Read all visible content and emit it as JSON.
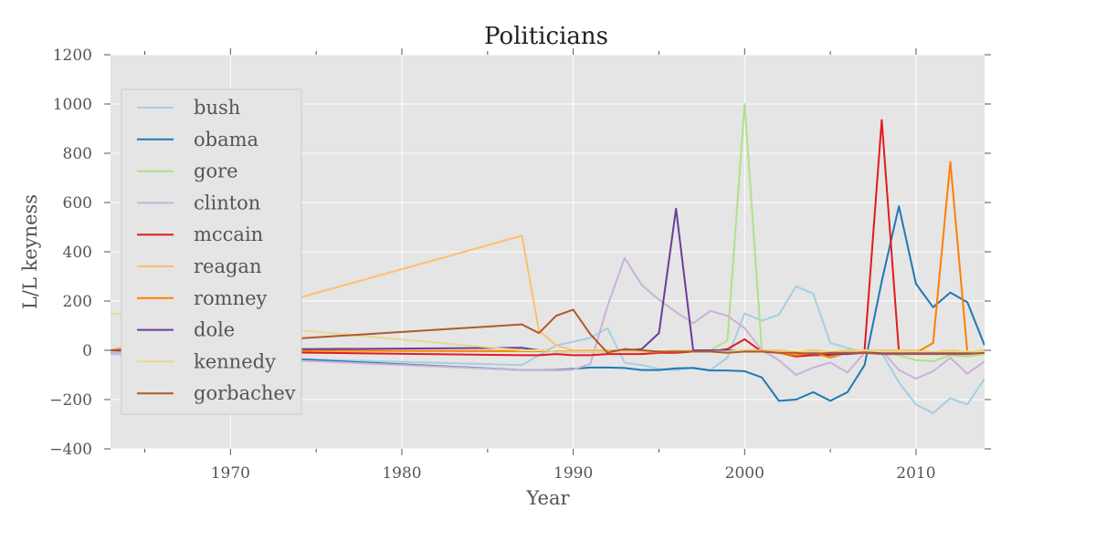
{
  "chart_data": {
    "type": "line",
    "title": "Politicians",
    "xlabel": "Year",
    "ylabel": "L/L keyness",
    "xlim": [
      1963,
      2014
    ],
    "ylim": [
      -400,
      1200
    ],
    "xticks": [
      1970,
      1980,
      1990,
      2000,
      2010
    ],
    "yticks": [
      -400,
      -200,
      0,
      200,
      400,
      600,
      800,
      1000,
      1200
    ],
    "ytick_labels": [
      "−400",
      "−200",
      "0",
      "200",
      "400",
      "600",
      "800",
      "1000",
      "1200"
    ],
    "grid": true,
    "legend_position": "upper-left",
    "series": [
      {
        "name": "bush",
        "color": "#a6cee3",
        "x": [
          1963,
          1987,
          1988,
          1989,
          1990,
          1991,
          1992,
          1993,
          1994,
          1995,
          1996,
          1997,
          1998,
          1999,
          2000,
          2001,
          2002,
          2003,
          2004,
          2005,
          2006,
          2007,
          2008,
          2009,
          2010,
          2011,
          2012,
          2013,
          2014
        ],
        "y": [
          -15,
          -60,
          -20,
          20,
          35,
          50,
          90,
          -50,
          -60,
          -75,
          -80,
          -70,
          -80,
          -30,
          150,
          120,
          145,
          260,
          230,
          30,
          10,
          -10,
          -10,
          -130,
          -220,
          -255,
          -195,
          -220,
          -115
        ]
      },
      {
        "name": "obama",
        "color": "#1f78b4",
        "x": [
          1963,
          1987,
          1988,
          1989,
          1990,
          1991,
          1992,
          1993,
          1994,
          1995,
          1996,
          1997,
          1998,
          1999,
          2000,
          2001,
          2002,
          2003,
          2004,
          2005,
          2006,
          2007,
          2008,
          2009,
          2010,
          2011,
          2012,
          2013,
          2014
        ],
        "y": [
          0,
          -80,
          -80,
          -80,
          -75,
          -70,
          -70,
          -72,
          -80,
          -80,
          -73,
          -72,
          -82,
          -82,
          -85,
          -110,
          -205,
          -200,
          -170,
          -205,
          -170,
          -60,
          280,
          585,
          270,
          175,
          235,
          195,
          20
        ]
      },
      {
        "name": "gore",
        "color": "#b2df8a",
        "x": [
          1963,
          1996,
          1997,
          1998,
          1999,
          2000,
          2001,
          2002,
          2008,
          2009,
          2010,
          2011,
          2012,
          2013,
          2014
        ],
        "y": [
          0,
          -5,
          -5,
          0,
          40,
          1000,
          0,
          -5,
          -5,
          -20,
          -40,
          -45,
          -20,
          -25,
          -15
        ]
      },
      {
        "name": "clinton",
        "color": "#cab2d6",
        "x": [
          1963,
          1987,
          1988,
          1989,
          1990,
          1991,
          1992,
          1993,
          1994,
          1995,
          1996,
          1997,
          1998,
          1999,
          2000,
          2001,
          2002,
          2003,
          2004,
          2005,
          2006,
          2007,
          2008,
          2009,
          2010,
          2011,
          2012,
          2013,
          2014
        ],
        "y": [
          -10,
          -80,
          -80,
          -82,
          -78,
          -55,
          180,
          375,
          265,
          205,
          155,
          110,
          160,
          140,
          90,
          0,
          -40,
          -100,
          -70,
          -50,
          -90,
          -10,
          0,
          -80,
          -115,
          -85,
          -30,
          -95,
          -45
        ]
      },
      {
        "name": "mccain",
        "color": "#e31a1c",
        "x": [
          1963,
          1987,
          1988,
          1989,
          1990,
          1991,
          1992,
          1993,
          1994,
          1995,
          1996,
          1997,
          1998,
          1999,
          2000,
          2001,
          2002,
          2003,
          2004,
          2005,
          2006,
          2007,
          2008,
          2009,
          2010,
          2011,
          2012,
          2013,
          2014
        ],
        "y": [
          0,
          -20,
          -20,
          -15,
          -20,
          -20,
          -15,
          -15,
          -15,
          -10,
          -10,
          -5,
          -5,
          5,
          45,
          -5,
          -10,
          -25,
          -20,
          -20,
          -5,
          0,
          935,
          -5,
          -10,
          -10,
          -10,
          -5,
          -5
        ]
      },
      {
        "name": "reagan",
        "color": "#fdbf6f",
        "x": [
          1963,
          1987,
          1988,
          1989,
          1990,
          1991,
          1992,
          1993,
          1994,
          1995,
          1996,
          1997,
          1998,
          1999,
          2000,
          2001,
          2002,
          2003,
          2004,
          2005,
          2006,
          2007,
          2008,
          2009,
          2010,
          2011,
          2012,
          2013,
          2014
        ],
        "y": [
          0,
          465,
          80,
          20,
          0,
          0,
          0,
          0,
          -5,
          -5,
          -5,
          0,
          0,
          -5,
          0,
          0,
          0,
          -5,
          0,
          -5,
          0,
          0,
          0,
          0,
          0,
          -5,
          0,
          -5,
          0
        ]
      },
      {
        "name": "romney",
        "color": "#ff7f00",
        "x": [
          1963,
          2001,
          2002,
          2003,
          2004,
          2005,
          2006,
          2007,
          2008,
          2009,
          2010,
          2011,
          2012,
          2013,
          2014
        ],
        "y": [
          0,
          -5,
          -10,
          -20,
          -10,
          -30,
          -10,
          -5,
          -5,
          -10,
          -10,
          30,
          765,
          -10,
          -10
        ]
      },
      {
        "name": "dole",
        "color": "#6a3d9a",
        "x": [
          1963,
          1987,
          1988,
          1989,
          1990,
          1991,
          1992,
          1993,
          1994,
          1995,
          1996,
          1997,
          1998,
          1999,
          2000,
          2001,
          2002,
          2003,
          2004,
          2005,
          2006,
          2007,
          2008,
          2009,
          2010,
          2011,
          2012,
          2013,
          2014
        ],
        "y": [
          0,
          10,
          0,
          -5,
          -5,
          -5,
          -5,
          0,
          5,
          70,
          575,
          0,
          0,
          0,
          -5,
          -5,
          -5,
          -10,
          -10,
          -15,
          -15,
          -10,
          -10,
          -10,
          -10,
          -10,
          -10,
          -10,
          -5
        ]
      },
      {
        "name": "kennedy",
        "color": "#e6d98e",
        "x": [
          1963,
          1987,
          1988,
          1989,
          1990,
          1991,
          1992,
          1993,
          1994,
          1995,
          1996,
          1997,
          1998,
          1999,
          2000,
          2001,
          2002,
          2003,
          2004,
          2005,
          2006,
          2007,
          2008,
          2009,
          2010,
          2011,
          2012,
          2013,
          2014
        ],
        "y": [
          150,
          0,
          0,
          -5,
          -5,
          -5,
          -5,
          -5,
          -5,
          -5,
          0,
          -5,
          -5,
          -5,
          0,
          -5,
          -5,
          -5,
          -5,
          -5,
          -5,
          0,
          -5,
          -5,
          -5,
          -5,
          -5,
          -5,
          -5
        ]
      },
      {
        "name": "gorbachev",
        "color": "#b15928",
        "x": [
          1963,
          1987,
          1988,
          1989,
          1990,
          1991,
          1992,
          1993,
          1994,
          1995,
          1996,
          1997,
          1998,
          1999,
          2000,
          2001,
          2002,
          2003,
          2004,
          2005,
          2006,
          2007,
          2008,
          2009,
          2010,
          2011,
          2012,
          2013,
          2014
        ],
        "y": [
          0,
          105,
          70,
          140,
          165,
          65,
          -10,
          5,
          0,
          -5,
          -5,
          -5,
          -5,
          -10,
          -5,
          -5,
          -10,
          -10,
          -15,
          -10,
          -10,
          -10,
          -15,
          -15,
          -15,
          -15,
          -15,
          -15,
          -10
        ]
      }
    ]
  }
}
